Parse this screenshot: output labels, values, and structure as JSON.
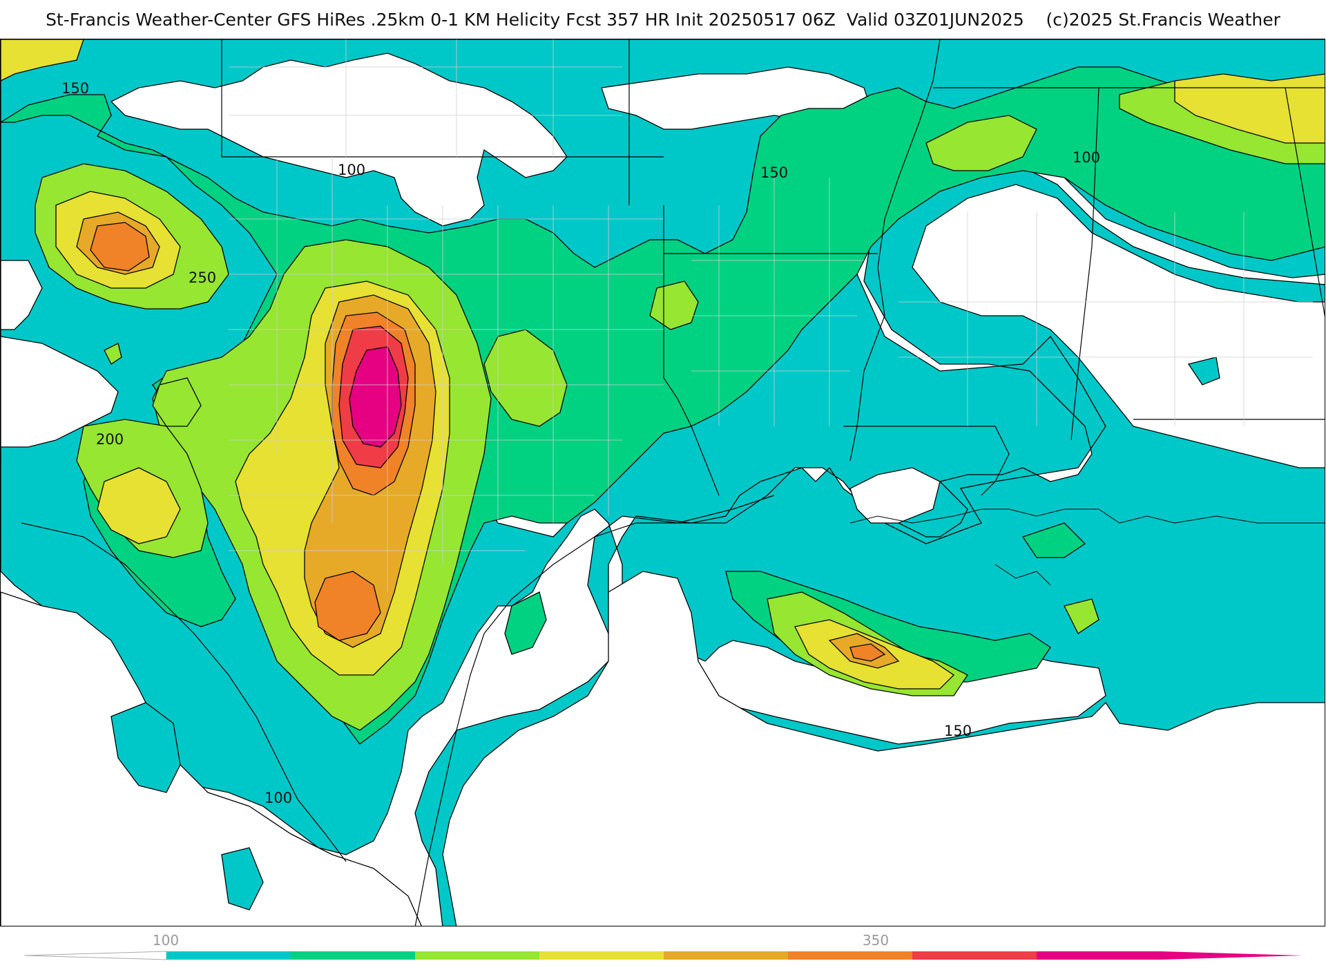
{
  "title": {
    "main": "St-Francis Weather-Center GFS HiRes .25km 0-1 KM Helicity Fcst 357 HR Init 20250517 06Z  Valid 03Z01JUN2025",
    "credit": "(c)2025 St.Francis Weather"
  },
  "contour_labels": [
    "150",
    "100",
    "150",
    "100",
    "250",
    "200",
    "100",
    "150"
  ],
  "colorbar": {
    "ticks": [
      "100",
      "350"
    ],
    "colors": [
      "#00c8c8",
      "#00d282",
      "#96e632",
      "#e6e132",
      "#e6aa28",
      "#f08228",
      "#f03c46",
      "#e60082"
    ],
    "below_color": "#ffffff"
  },
  "fill_colors": {
    "lt100": "#ffffff",
    "c100": "#00c8c8",
    "c150": "#00d282",
    "c200": "#96e632",
    "c250": "#e6e132",
    "c275": "#e6aa28",
    "c300": "#f08228",
    "c350": "#f03c46",
    "c400": "#e60082"
  }
}
